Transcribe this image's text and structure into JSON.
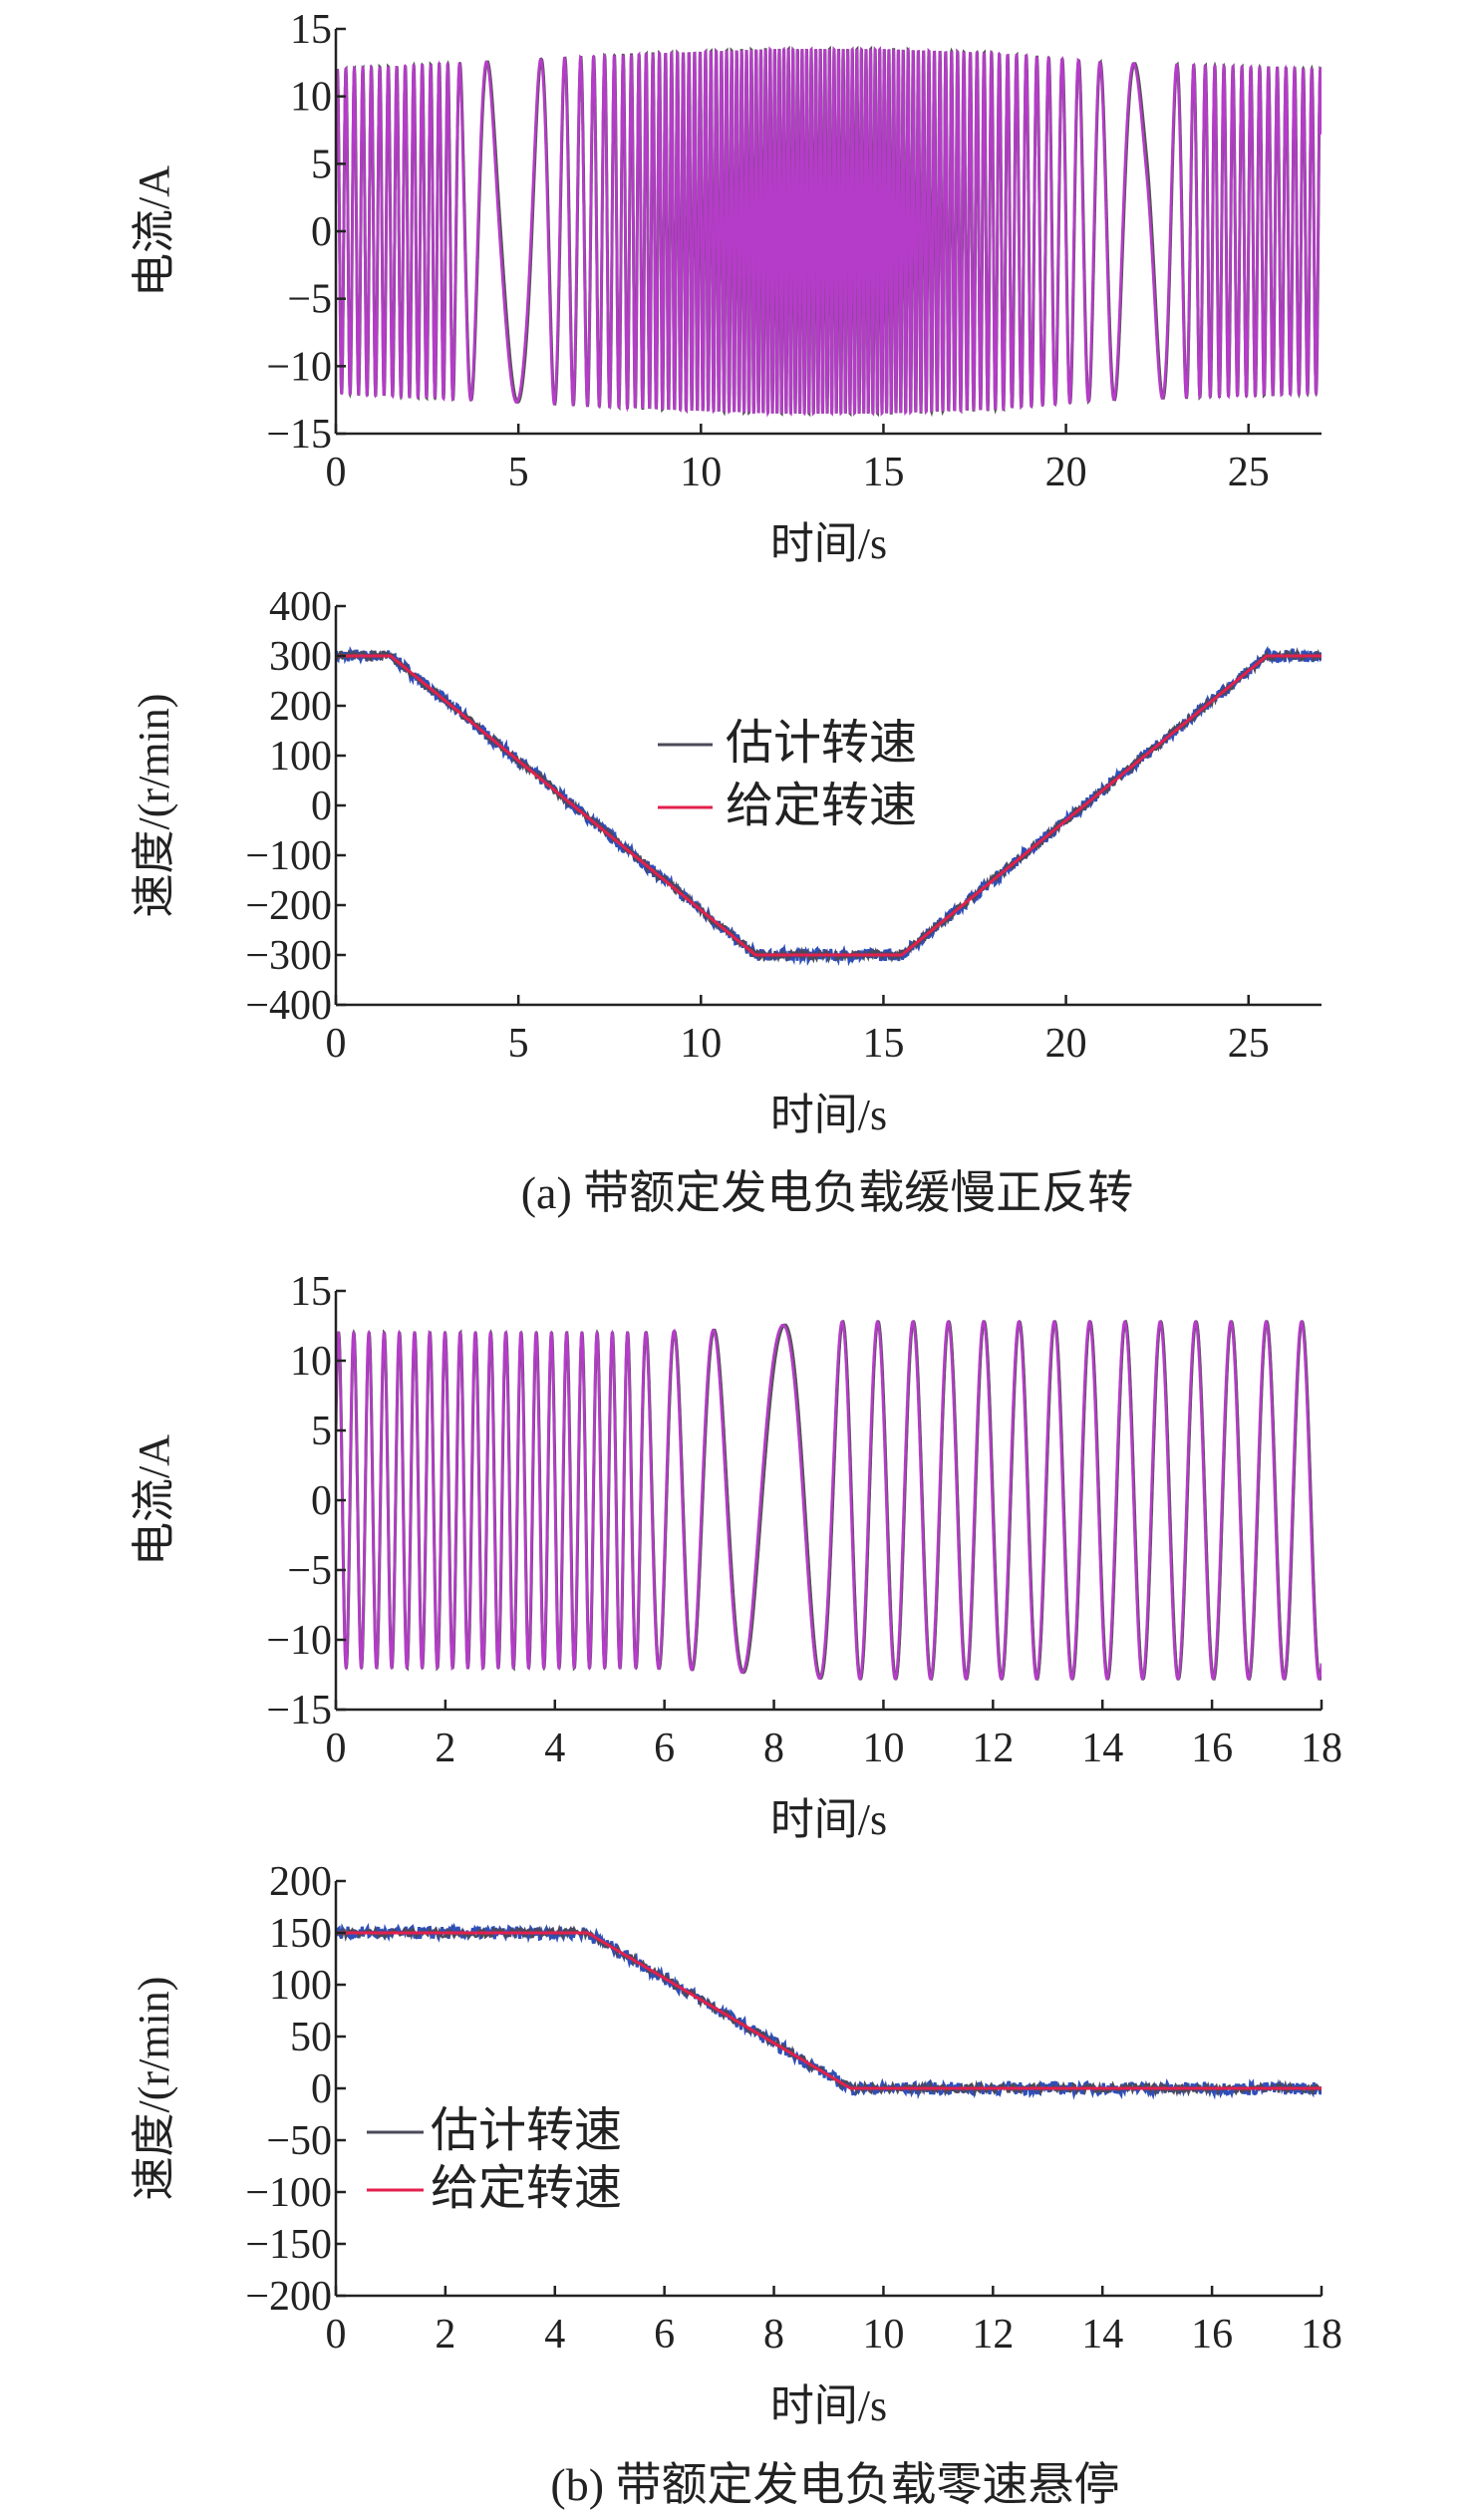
{
  "colors": {
    "current_set": "#b53cc8",
    "current_est": "#555555",
    "speed_est": "#4a4a5a",
    "speed_est_band": "#2f4fb8",
    "speed_set": "#e3204d",
    "axis": "#222222"
  },
  "captions": {
    "a": "(a) 带额定发电负载缓慢正反转",
    "b": "(b) 带额定发电负载零速悬停"
  },
  "chart_data": [
    {
      "type": "line",
      "panel": "a-current",
      "xlabel": "时间/s",
      "ylabel": "电流/A",
      "xlim": [
        0,
        27
      ],
      "ylim": [
        -15,
        15
      ],
      "xticks": [
        0,
        5,
        10,
        15,
        20,
        25
      ],
      "xtick_labels": [
        "0",
        "5",
        "10",
        "15",
        "20",
        "25"
      ],
      "yticks": [
        15,
        10,
        5,
        0,
        -5,
        -10,
        -15
      ],
      "ytick_labels": [
        "15",
        "10",
        "5",
        "0",
        "−5",
        "−10",
        "−15"
      ],
      "series": [
        {
          "name": "current",
          "amplitude_A": {
            "t": [
              0,
              6,
              9,
              12,
              15,
              18,
              21,
              27
            ],
            "a": [
              12,
              12.8,
              13.2,
              13.5,
              13.5,
              13.2,
              12.5,
              12
            ]
          },
          "frequency_Hz": {
            "t": [
              0,
              3,
              3.5,
              4.5,
              5.2,
              6,
              7,
              9,
              12,
              15,
              17,
              19,
              20.5,
              21.5,
              22.2,
              23,
              24,
              27
            ],
            "f": [
              4.3,
              4.3,
              1.6,
              0.5,
              0.6,
              1.6,
              3,
              6,
              8,
              8,
              6,
              3.5,
              1.8,
              1,
              0.4,
              1.5,
              4,
              4.3
            ]
          }
        }
      ]
    },
    {
      "type": "line",
      "panel": "a-speed",
      "xlabel": "时间/s",
      "ylabel": "速度/(r/min)",
      "xlim": [
        0,
        27
      ],
      "ylim": [
        -400,
        400
      ],
      "xticks": [
        0,
        5,
        10,
        15,
        20,
        25
      ],
      "xtick_labels": [
        "0",
        "5",
        "10",
        "15",
        "20",
        "25"
      ],
      "yticks": [
        400,
        300,
        200,
        100,
        0,
        -100,
        -200,
        -300,
        -400
      ],
      "ytick_labels": [
        "400",
        "300",
        "200",
        "100",
        "0",
        "−100",
        "−200",
        "−300",
        "−400"
      ],
      "legend": [
        "估计转速",
        "给定转速"
      ],
      "legend_position": "center",
      "series": [
        {
          "name": "估计转速",
          "t": [
            0,
            1.5,
            11.5,
            15.5,
            25.5,
            27
          ],
          "v": [
            300,
            300,
            -300,
            -300,
            300,
            300
          ],
          "noise": 12
        },
        {
          "name": "给定转速",
          "t": [
            0,
            1.5,
            11.5,
            15.5,
            25.5,
            27
          ],
          "v": [
            300,
            300,
            -300,
            -300,
            300,
            300
          ]
        }
      ]
    },
    {
      "type": "line",
      "panel": "b-current",
      "xlabel": "时间/s",
      "ylabel": "电流/A",
      "xlim": [
        0,
        18
      ],
      "ylim": [
        -15,
        15
      ],
      "xticks": [
        0,
        2,
        4,
        6,
        8,
        10,
        12,
        14,
        16,
        18
      ],
      "xtick_labels": [
        "0",
        "2",
        "4",
        "6",
        "8",
        "10",
        "12",
        "14",
        "16",
        "18"
      ],
      "yticks": [
        15,
        10,
        5,
        0,
        -5,
        -10,
        -15
      ],
      "ytick_labels": [
        "15",
        "10",
        "5",
        "0",
        "−5",
        "−10",
        "−15"
      ],
      "series": [
        {
          "name": "current",
          "amplitude_A": {
            "t": [
              0,
              5.5,
              7,
              9,
              18
            ],
            "a": [
              12,
              12,
              12.2,
              12.8,
              12.8
            ]
          },
          "frequency_Hz": {
            "t": [
              0,
              5.3,
              5.8,
              6.5,
              7.2,
              8.1,
              8.8,
              9.3,
              18
            ],
            "f": [
              3.6,
              3.6,
              2,
              1.4,
              0.9,
              0.55,
              0.9,
              1.55,
              1.55
            ]
          }
        }
      ]
    },
    {
      "type": "line",
      "panel": "b-speed",
      "xlabel": "时间/s",
      "ylabel": "速度/(r/min)",
      "xlim": [
        0,
        18
      ],
      "ylim": [
        -200,
        200
      ],
      "xticks": [
        0,
        2,
        4,
        6,
        8,
        10,
        12,
        14,
        16,
        18
      ],
      "xtick_labels": [
        "0",
        "2",
        "4",
        "6",
        "8",
        "10",
        "12",
        "14",
        "16",
        "18"
      ],
      "yticks": [
        200,
        150,
        100,
        50,
        0,
        -50,
        -100,
        -150,
        -200
      ],
      "ytick_labels": [
        "200",
        "150",
        "100",
        "50",
        "0",
        "−50",
        "−100",
        "−150",
        "−200"
      ],
      "legend": [
        "估计转速",
        "给定转速"
      ],
      "legend_position": "left",
      "series": [
        {
          "name": "估计转速",
          "t": [
            0,
            4.6,
            9.4,
            18
          ],
          "v": [
            150,
            150,
            0,
            0
          ],
          "noise": 6
        },
        {
          "name": "给定转速",
          "t": [
            0,
            4.6,
            9.4,
            18
          ],
          "v": [
            150,
            150,
            0,
            0
          ]
        }
      ]
    }
  ]
}
